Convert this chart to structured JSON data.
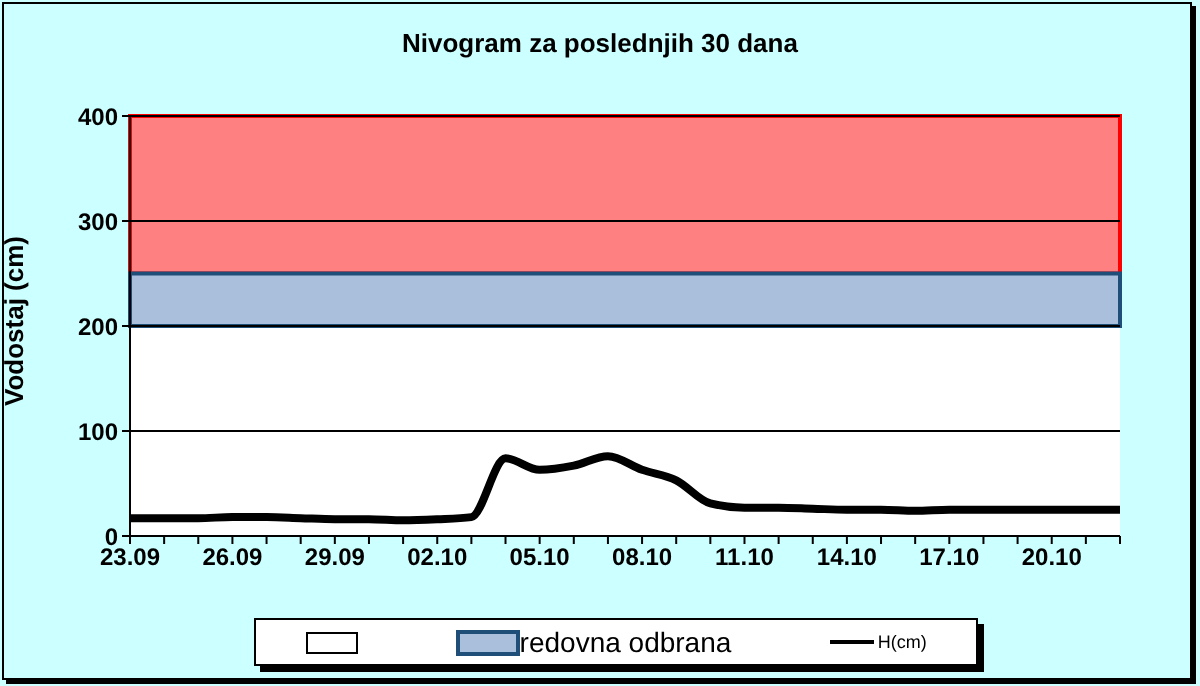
{
  "chart_data": {
    "type": "line",
    "title": "Nivogram za poslednjih 30 dana",
    "ylabel": "Vodostaj (cm)",
    "x": [
      "--09-23",
      "--09-24",
      "--09-25",
      "--09-26",
      "--09-27",
      "--09-28",
      "--09-29",
      "--09-30",
      "--10-01",
      "--10-02",
      "--10-03",
      "--10-04",
      "--10-05",
      "--10-06",
      "--10-07",
      "--10-08",
      "--10-09",
      "--10-10",
      "--10-11",
      "--10-12",
      "--10-13",
      "--10-14",
      "--10-15",
      "--10-16",
      "--10-17",
      "--10-18",
      "--10-19",
      "--10-20",
      "--10-21",
      "--10-22"
    ],
    "series": [
      {
        "name": "H(cm)",
        "color": "#000000",
        "values": [
          17,
          17,
          17,
          18,
          18,
          17,
          16,
          16,
          15,
          16,
          18,
          74,
          63,
          67,
          76,
          63,
          53,
          31,
          27,
          27,
          26,
          25,
          25,
          24,
          25,
          25,
          25,
          25,
          25,
          25
        ]
      }
    ],
    "xlim": [
      "--09-23",
      "--10-22"
    ],
    "xticks": [
      {
        "value": "--09-23",
        "label": "23.09"
      },
      {
        "value": "--09-24",
        "label": null
      },
      {
        "value": "--09-25",
        "label": null
      },
      {
        "value": "--09-26",
        "label": "26.09"
      },
      {
        "value": "--09-27",
        "label": null
      },
      {
        "value": "--09-28",
        "label": null
      },
      {
        "value": "--09-29",
        "label": "29.09"
      },
      {
        "value": "--09-30",
        "label": null
      },
      {
        "value": "--10-01",
        "label": null
      },
      {
        "value": "--10-02",
        "label": "02.10"
      },
      {
        "value": "--10-03",
        "label": null
      },
      {
        "value": "--10-04",
        "label": null
      },
      {
        "value": "--10-05",
        "label": "05.10"
      },
      {
        "value": "--10-06",
        "label": null
      },
      {
        "value": "--10-07",
        "label": null
      },
      {
        "value": "--10-08",
        "label": "08.10"
      },
      {
        "value": "--10-09",
        "label": null
      },
      {
        "value": "--10-10",
        "label": null
      },
      {
        "value": "--10-11",
        "label": "11.10"
      },
      {
        "value": "--10-12",
        "label": null
      },
      {
        "value": "--10-13",
        "label": null
      },
      {
        "value": "--10-14",
        "label": "14.10"
      },
      {
        "value": "--10-15",
        "label": null
      },
      {
        "value": "--10-16",
        "label": null
      },
      {
        "value": "--10-17",
        "label": "17.10"
      },
      {
        "value": "--10-18",
        "label": null
      },
      {
        "value": "--10-19",
        "label": null
      },
      {
        "value": "--10-20",
        "label": "20.10"
      },
      {
        "value": "--10-21",
        "label": null
      },
      {
        "value": "--10-22",
        "label": null
      }
    ],
    "ylim": [
      0,
      400
    ],
    "yticks": [
      0,
      100,
      200,
      300,
      400
    ],
    "bands": [
      {
        "axis": "y",
        "from": 250,
        "to": 400,
        "color": "#ff8080"
      },
      {
        "axis": "y",
        "from": 200,
        "to": 250,
        "color": "#a9bfdc",
        "label": "redovna odbrana"
      }
    ],
    "grid": "y",
    "legend": "bottom",
    "marker": "none",
    "line_style": "solid"
  }
}
